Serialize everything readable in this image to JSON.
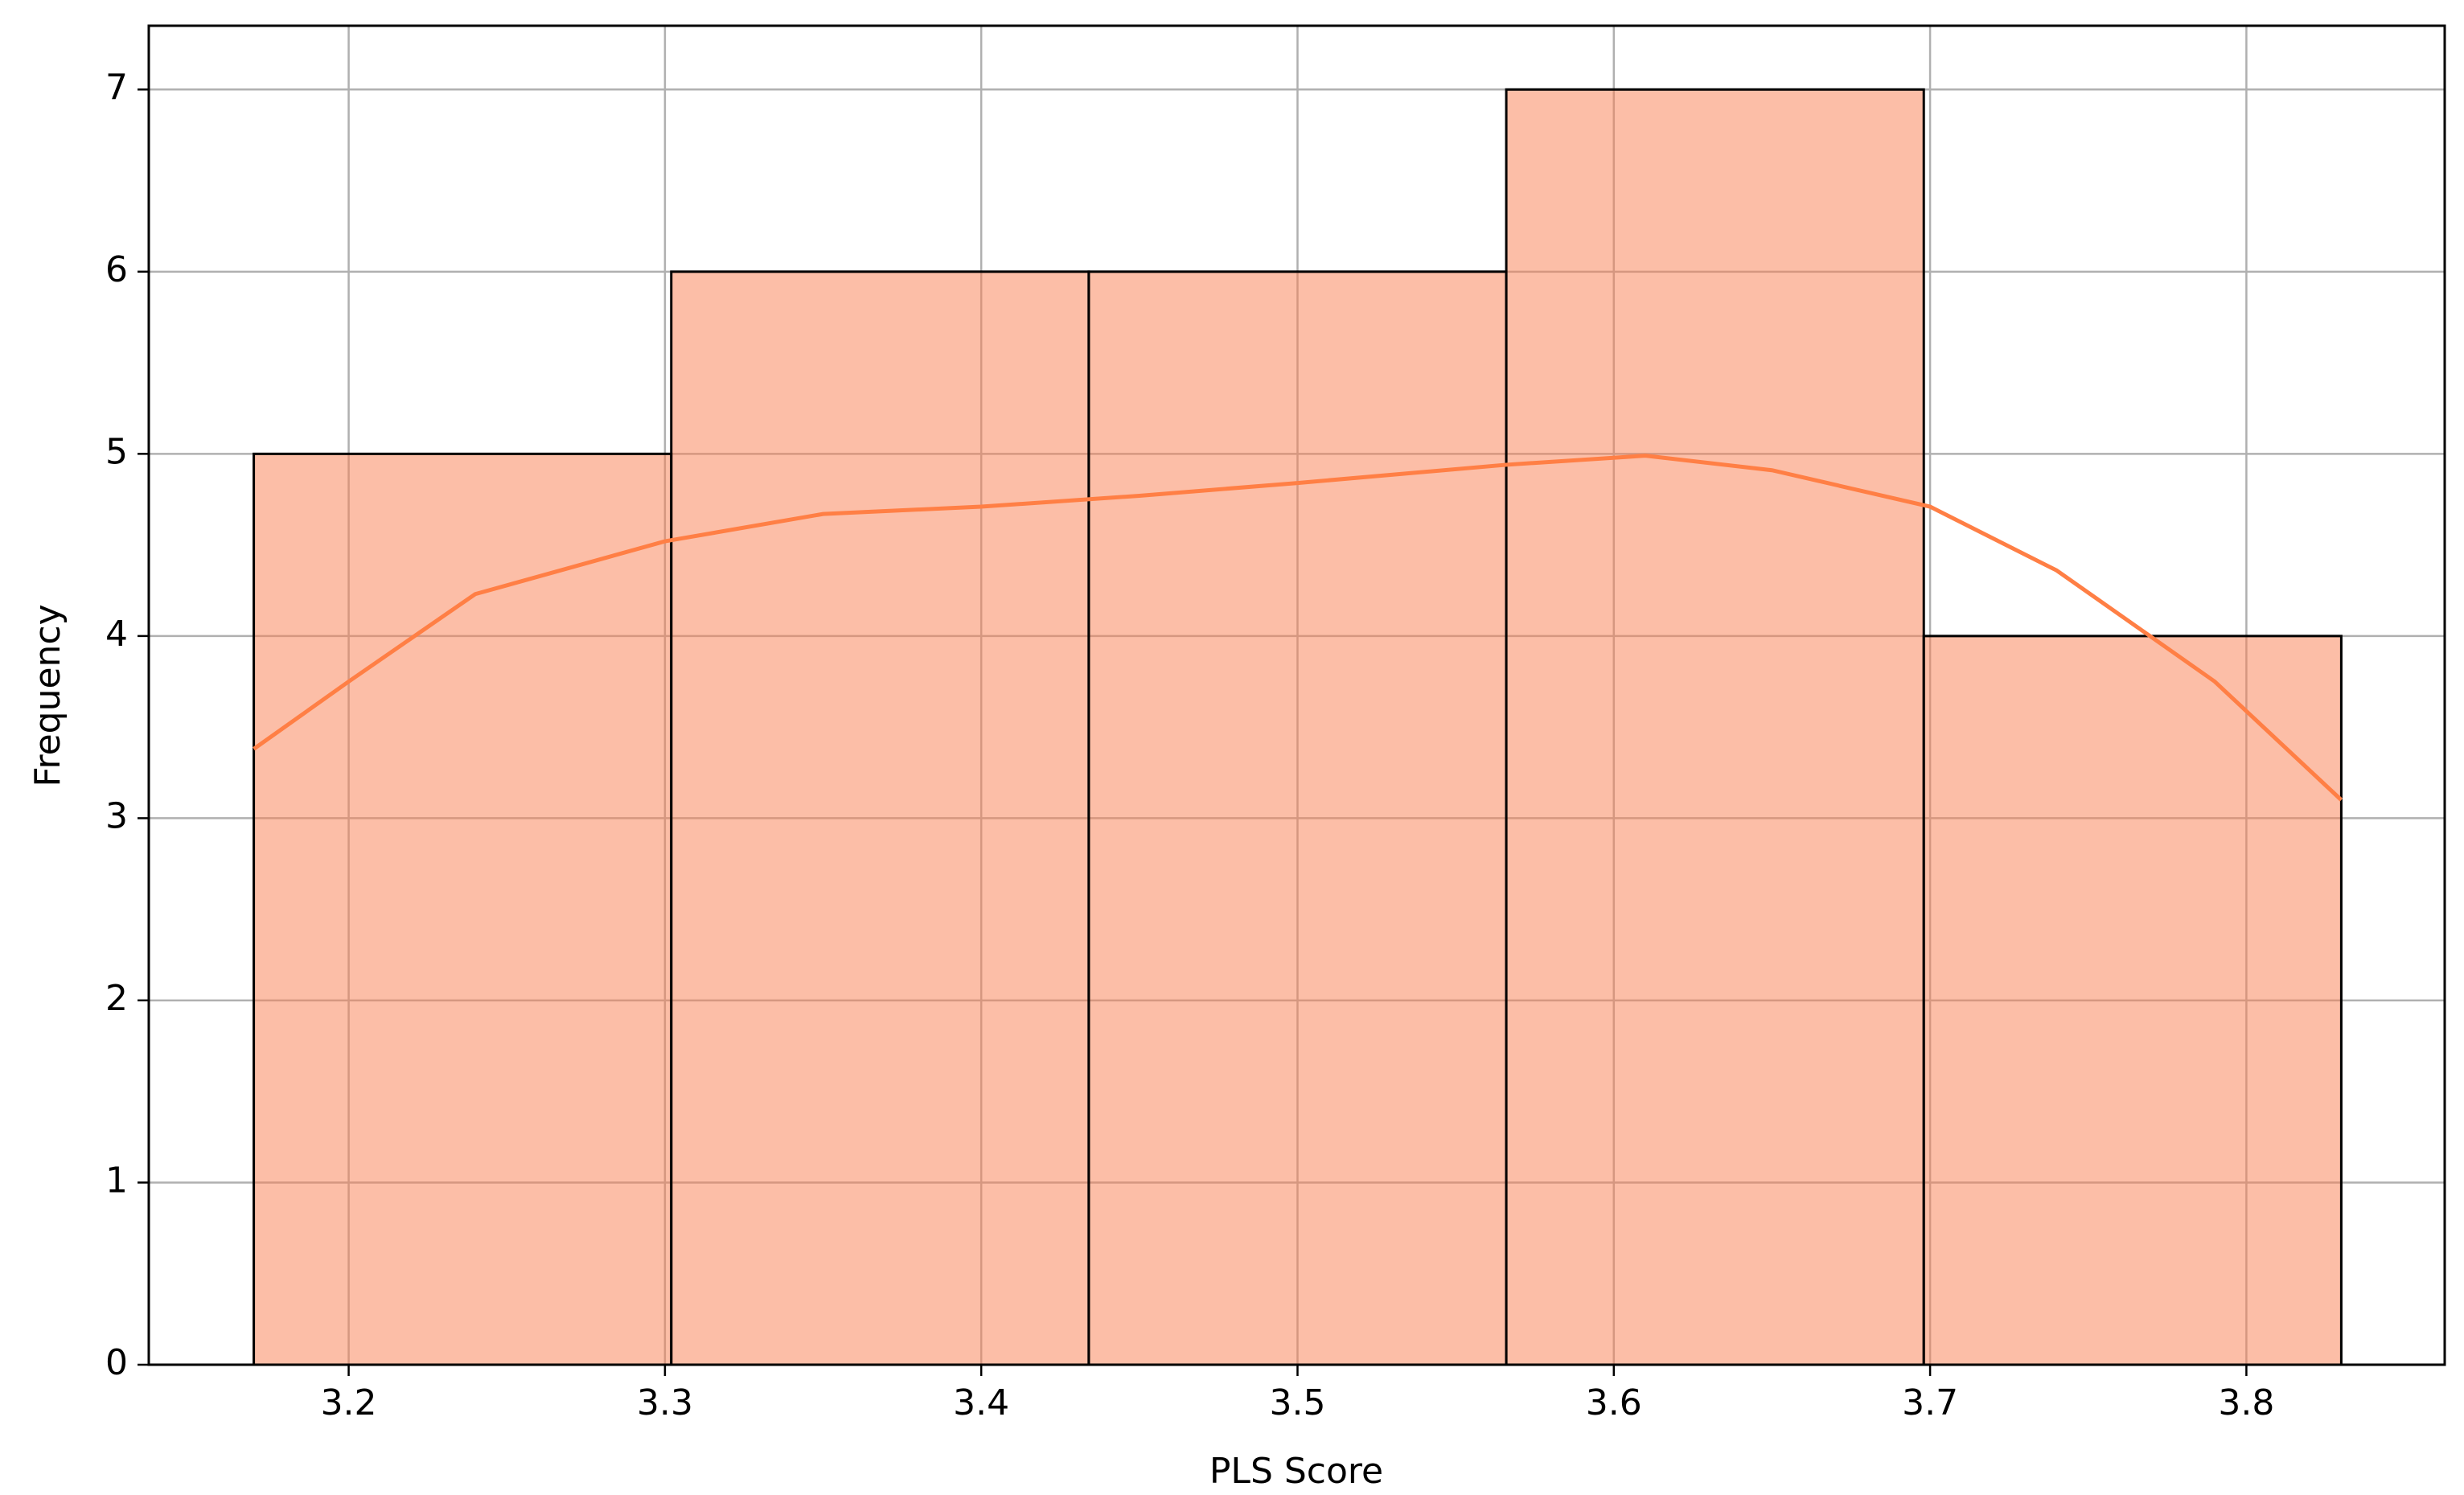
{
  "chart_data": {
    "type": "histogram",
    "bins": [
      3.17,
      3.302,
      3.434,
      3.566,
      3.698,
      3.83
    ],
    "counts": [
      5,
      6,
      6,
      7,
      4
    ],
    "color": "#fa7d50",
    "kde": {
      "color": "#ff7f45",
      "x": [
        3.17,
        3.2,
        3.24,
        3.3,
        3.35,
        3.4,
        3.45,
        3.5,
        3.566,
        3.61,
        3.65,
        3.7,
        3.74,
        3.79,
        3.83
      ],
      "values": [
        3.38,
        3.75,
        4.23,
        4.52,
        4.67,
        4.71,
        4.77,
        4.84,
        4.94,
        4.99,
        4.91,
        4.71,
        4.36,
        3.75,
        3.1
      ]
    },
    "xlabel": "PLS Score",
    "ylabel": "Frequency",
    "xlim": [
      3.1368,
      3.8627
    ],
    "ylim": [
      0,
      7.35
    ],
    "xticks": [
      3.2,
      3.3,
      3.4,
      3.5,
      3.6,
      3.7,
      3.8
    ],
    "yticks": [
      0,
      1,
      2,
      3,
      4,
      5,
      6,
      7
    ],
    "grid": true
  }
}
